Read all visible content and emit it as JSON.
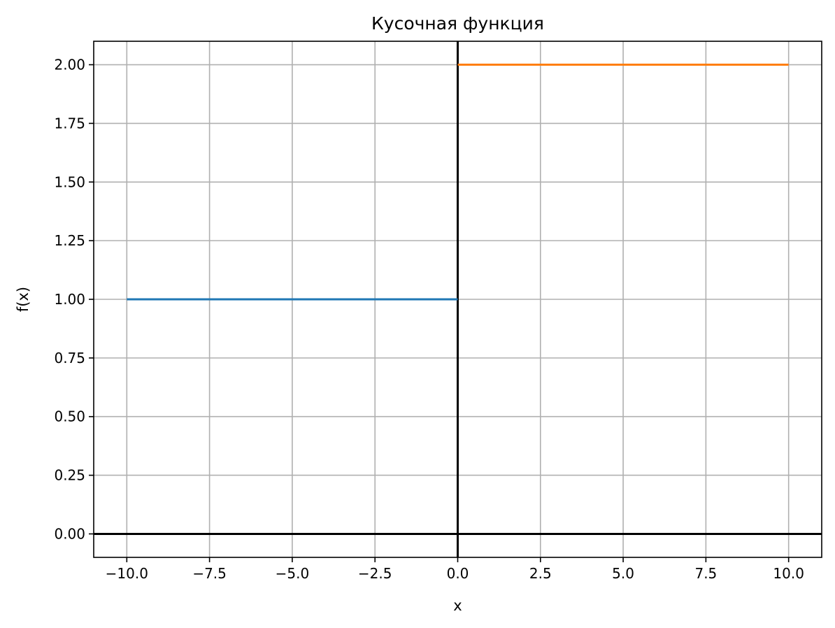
{
  "chart_data": {
    "type": "line",
    "title": "Кусочная функция",
    "xlabel": "x",
    "ylabel": "f(x)",
    "xlim": [
      -11,
      11
    ],
    "ylim": [
      -0.1,
      2.1
    ],
    "x_ticks": [
      -10.0,
      -7.5,
      -5.0,
      -2.5,
      0.0,
      2.5,
      5.0,
      7.5,
      10.0
    ],
    "x_tick_labels": [
      "−10.0",
      "−7.5",
      "−5.0",
      "−2.5",
      "0.0",
      "2.5",
      "5.0",
      "7.5",
      "10.0"
    ],
    "y_ticks": [
      0.0,
      0.25,
      0.5,
      0.75,
      1.0,
      1.25,
      1.5,
      1.75,
      2.0
    ],
    "y_tick_labels": [
      "0.00",
      "0.25",
      "0.50",
      "0.75",
      "1.00",
      "1.25",
      "1.50",
      "1.75",
      "2.00"
    ],
    "grid": true,
    "reference_lines": [
      {
        "orientation": "horizontal",
        "value": 0,
        "color": "#000000"
      },
      {
        "orientation": "vertical",
        "value": 0,
        "color": "#000000"
      }
    ],
    "series": [
      {
        "x": [
          -10,
          0
        ],
        "y": [
          1,
          1
        ],
        "color": "#1f77b4"
      },
      {
        "x": [
          0,
          10
        ],
        "y": [
          2,
          2
        ],
        "color": "#ff7f0e"
      }
    ]
  }
}
